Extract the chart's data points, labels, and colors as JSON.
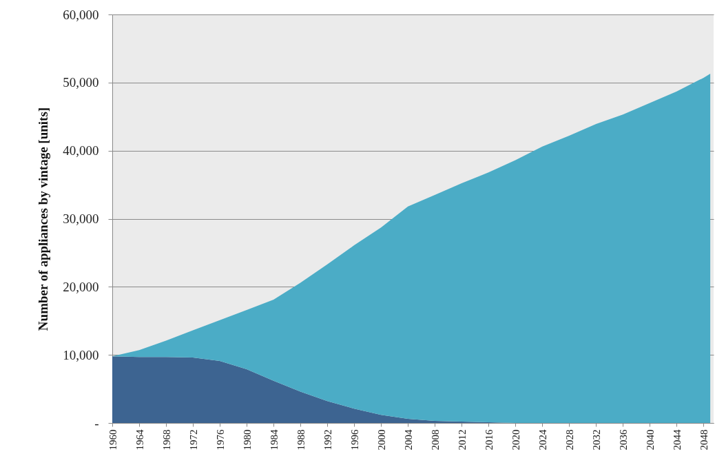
{
  "chart_data": {
    "type": "area",
    "ylabel": "Number of appliances by vintage [units]",
    "stacked": true,
    "grid": "y",
    "legend": false,
    "x": [
      1960,
      1964,
      1968,
      1972,
      1976,
      1980,
      1984,
      1988,
      1992,
      1996,
      2000,
      2004,
      2008,
      2012,
      2016,
      2020,
      2024,
      2028,
      2032,
      2036,
      2040,
      2044,
      2048,
      2049
    ],
    "series": [
      {
        "color": "#3d6491",
        "values": [
          9800,
          9700,
          9700,
          9600,
          9100,
          7900,
          6200,
          4600,
          3200,
          2100,
          1200,
          600,
          300,
          200,
          100,
          0,
          0,
          0,
          0,
          0,
          0,
          0,
          0,
          0
        ]
      },
      {
        "color": "#4bacc6",
        "values": [
          0,
          1000,
          2400,
          4000,
          6000,
          8700,
          11900,
          16000,
          20100,
          24000,
          27500,
          31200,
          33200,
          35000,
          36700,
          38600,
          40600,
          42200,
          43900,
          45300,
          47000,
          48700,
          50700,
          51300
        ]
      }
    ],
    "xlim": [
      1960,
      2049.5
    ],
    "xticks": [
      1960,
      1964,
      1968,
      1972,
      1976,
      1980,
      1984,
      1988,
      1992,
      1996,
      2000,
      2004,
      2008,
      2012,
      2016,
      2020,
      2024,
      2028,
      2032,
      2036,
      2040,
      2044,
      2048
    ],
    "ylim": [
      0,
      60000
    ],
    "yticks": [
      {
        "value": 0,
        "label": "-"
      },
      {
        "value": 10000,
        "label": "10,000"
      },
      {
        "value": 20000,
        "label": "20,000"
      },
      {
        "value": 30000,
        "label": "30,000"
      },
      {
        "value": 40000,
        "label": "40,000"
      },
      {
        "value": 50000,
        "label": "50,000"
      },
      {
        "value": 60000,
        "label": "60,000"
      }
    ]
  }
}
